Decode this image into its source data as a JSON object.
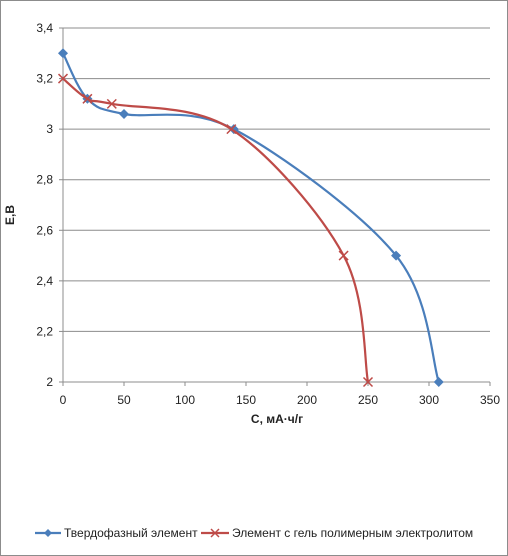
{
  "chart_data": {
    "type": "line",
    "xlabel": "С, мА·ч/г",
    "ylabel": "E,B",
    "xlim": [
      0,
      350
    ],
    "ylim": [
      2,
      3.4
    ],
    "x_ticks": [
      "0",
      "50",
      "100",
      "150",
      "200",
      "250",
      "300",
      "350"
    ],
    "y_ticks": [
      "2",
      "2,2",
      "2,4",
      "2,6",
      "2,8",
      "3",
      "3,2",
      "3,4"
    ],
    "grid": "horizontal",
    "legend_position": "bottom",
    "series": [
      {
        "name": "Твердофазный элемент",
        "marker": "diamond",
        "color": "#4a7ebb",
        "points": [
          [
            0,
            3.3
          ],
          [
            20,
            3.12
          ],
          [
            50,
            3.06
          ],
          [
            140,
            3.0
          ],
          [
            273,
            2.5
          ],
          [
            308,
            2.0
          ]
        ]
      },
      {
        "name": "Элемент с гель полимерным электролитом",
        "marker": "x",
        "color": "#be4b48",
        "points": [
          [
            0,
            3.2
          ],
          [
            20,
            3.12
          ],
          [
            40,
            3.1
          ],
          [
            138,
            3.0
          ],
          [
            230,
            2.5
          ],
          [
            250,
            2.0
          ]
        ]
      }
    ]
  }
}
